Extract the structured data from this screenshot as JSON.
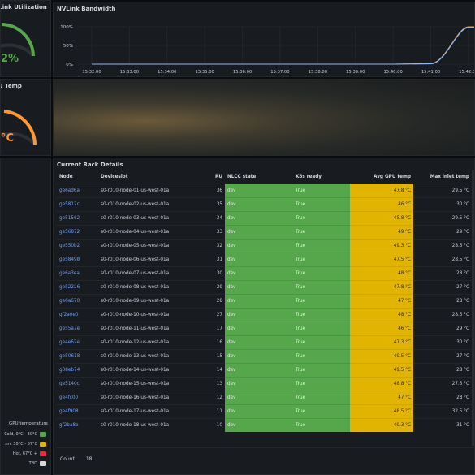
{
  "util_panel": {
    "title": "NVLink Utilization",
    "value": "2%"
  },
  "temp_panel": {
    "title": "GPU Temp",
    "value": "°C"
  },
  "nvlink_panel": {
    "title": "NVLink Bandwidth",
    "y_ticks": [
      "100%",
      "50%",
      "0%"
    ],
    "x_ticks": [
      "15:32:00",
      "15:33:00",
      "15:34:00",
      "15:35:00",
      "15:36:00",
      "15:37:00",
      "15:38:00",
      "15:39:00",
      "15:40:00",
      "15:41:00",
      "15:42:00"
    ],
    "colors": {
      "series_a": "#ff9830",
      "series_b": "#8ab8ff"
    }
  },
  "chart_data": {
    "type": "line",
    "title": "NVLink Bandwidth",
    "x": [
      "15:32:00",
      "15:33:00",
      "15:34:00",
      "15:35:00",
      "15:36:00",
      "15:37:00",
      "15:38:00",
      "15:39:00",
      "15:40:00",
      "15:41:00",
      "15:42:00"
    ],
    "ylim": [
      0,
      100
    ],
    "series": [
      {
        "values": [
          0,
          0,
          0,
          0,
          0,
          0,
          0,
          0,
          0,
          2,
          100
        ]
      },
      {
        "values": [
          0,
          0,
          0,
          0,
          0,
          0,
          0,
          0,
          0,
          1,
          98
        ]
      }
    ]
  },
  "table": {
    "title": "Current Rack Details",
    "headers": {
      "node": "Node",
      "devslot": "Deviceslot",
      "ru": "RU",
      "nlcc": "NLCC state",
      "k8s": "K8s ready",
      "gpu": "Avg GPU temp",
      "inlet": "Max inlet temp"
    },
    "rows": [
      {
        "node": "ge6ad6a",
        "devslot": "s0-r010-node-01-us-west-01a",
        "ru": "36",
        "nlcc": "dev",
        "k8s": "True",
        "gpu": "47.8 °C",
        "inlet": "29.5 °C"
      },
      {
        "node": "ge5812c",
        "devslot": "s0-r010-node-02-us-west-01a",
        "ru": "35",
        "nlcc": "dev",
        "k8s": "True",
        "gpu": "46 °C",
        "inlet": "30 °C"
      },
      {
        "node": "ge51562",
        "devslot": "s0-r010-node-03-us-west-01a",
        "ru": "34",
        "nlcc": "dev",
        "k8s": "True",
        "gpu": "45.8 °C",
        "inlet": "29.5 °C"
      },
      {
        "node": "ge56872",
        "devslot": "s0-r010-node-04-us-west-01a",
        "ru": "33",
        "nlcc": "dev",
        "k8s": "True",
        "gpu": "49 °C",
        "inlet": "29 °C"
      },
      {
        "node": "ge550b2",
        "devslot": "s0-r010-node-05-us-west-01a",
        "ru": "32",
        "nlcc": "dev",
        "k8s": "True",
        "gpu": "49.3 °C",
        "inlet": "28.5 °C"
      },
      {
        "node": "ge58498",
        "devslot": "s0-r010-node-06-us-west-01a",
        "ru": "31",
        "nlcc": "dev",
        "k8s": "True",
        "gpu": "47.5 °C",
        "inlet": "28.5 °C"
      },
      {
        "node": "ge6a3ea",
        "devslot": "s0-r010-node-07-us-west-01a",
        "ru": "30",
        "nlcc": "dev",
        "k8s": "True",
        "gpu": "48 °C",
        "inlet": "28 °C"
      },
      {
        "node": "ge52226",
        "devslot": "s0-r010-node-08-us-west-01a",
        "ru": "29",
        "nlcc": "dev",
        "k8s": "True",
        "gpu": "47.8 °C",
        "inlet": "27 °C"
      },
      {
        "node": "ge6a670",
        "devslot": "s0-r010-node-09-us-west-01a",
        "ru": "28",
        "nlcc": "dev",
        "k8s": "True",
        "gpu": "47 °C",
        "inlet": "28 °C"
      },
      {
        "node": "gf2a0e0",
        "devslot": "s0-r010-node-10-us-west-01a",
        "ru": "27",
        "nlcc": "dev",
        "k8s": "True",
        "gpu": "48 °C",
        "inlet": "28.5 °C"
      },
      {
        "node": "ge55a7e",
        "devslot": "s0-r010-node-11-us-west-01a",
        "ru": "17",
        "nlcc": "dev",
        "k8s": "True",
        "gpu": "46 °C",
        "inlet": "29 °C"
      },
      {
        "node": "ge4e62e",
        "devslot": "s0-r010-node-12-us-west-01a",
        "ru": "16",
        "nlcc": "dev",
        "k8s": "True",
        "gpu": "47.3 °C",
        "inlet": "30 °C"
      },
      {
        "node": "ge50618",
        "devslot": "s0-r010-node-13-us-west-01a",
        "ru": "15",
        "nlcc": "dev",
        "k8s": "True",
        "gpu": "49.5 °C",
        "inlet": "27 °C"
      },
      {
        "node": "g08eb74",
        "devslot": "s0-r010-node-14-us-west-01a",
        "ru": "14",
        "nlcc": "dev",
        "k8s": "True",
        "gpu": "49.5 °C",
        "inlet": "28 °C"
      },
      {
        "node": "ge5140c",
        "devslot": "s0-r010-node-15-us-west-01a",
        "ru": "13",
        "nlcc": "dev",
        "k8s": "True",
        "gpu": "48.8 °C",
        "inlet": "27.5 °C"
      },
      {
        "node": "ge4fc00",
        "devslot": "s0-r010-node-16-us-west-01a",
        "ru": "12",
        "nlcc": "dev",
        "k8s": "True",
        "gpu": "47 °C",
        "inlet": "28 °C"
      },
      {
        "node": "ge4f908",
        "devslot": "s0-r010-node-17-us-west-01a",
        "ru": "11",
        "nlcc": "dev",
        "k8s": "True",
        "gpu": "48.5 °C",
        "inlet": "32.5 °C"
      },
      {
        "node": "gf2ba8e",
        "devslot": "s0-r010-node-18-us-west-01a",
        "ru": "10",
        "nlcc": "dev",
        "k8s": "True",
        "gpu": "49.3 °C",
        "inlet": "31 °C"
      }
    ],
    "count_label": "Count",
    "count_value": "18"
  },
  "legend": {
    "title": "GPU temperature",
    "items": [
      {
        "label": "Cold, 0°C - 30°C",
        "color": "#56a64b"
      },
      {
        "label": "rm, 30°C - 67°C",
        "color": "#e0b400"
      },
      {
        "label": "Hot, 67°C +",
        "color": "#e02f44"
      },
      {
        "label": "TBD",
        "color": "#d8d9da"
      }
    ]
  }
}
